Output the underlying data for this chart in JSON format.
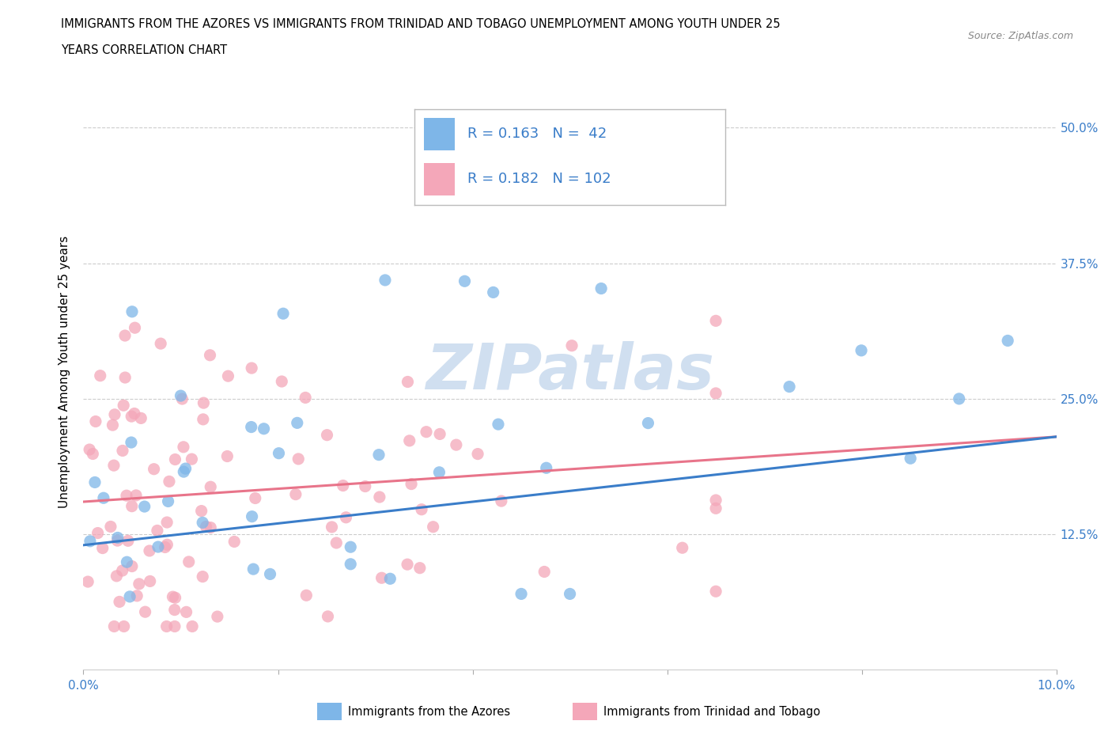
{
  "title_line1": "IMMIGRANTS FROM THE AZORES VS IMMIGRANTS FROM TRINIDAD AND TOBAGO UNEMPLOYMENT AMONG YOUTH UNDER 25",
  "title_line2": "YEARS CORRELATION CHART",
  "source": "Source: ZipAtlas.com",
  "ylabel": "Unemployment Among Youth under 25 years",
  "xlim": [
    0.0,
    0.1
  ],
  "ylim": [
    0.0,
    0.55
  ],
  "xtick_pos": [
    0.0,
    0.02,
    0.04,
    0.06,
    0.08,
    0.1
  ],
  "xticklabels": [
    "0.0%",
    "",
    "",
    "",
    "",
    "10.0%"
  ],
  "ytick_pos": [
    0.125,
    0.25,
    0.375,
    0.5
  ],
  "yticklabels": [
    "12.5%",
    "25.0%",
    "37.5%",
    "50.0%"
  ],
  "azores_color": "#7EB6E8",
  "trinidad_color": "#F4A7B9",
  "azores_line_color": "#3A7DC9",
  "trinidad_line_color": "#E8748A",
  "R_azores": 0.163,
  "N_azores": 42,
  "R_trinidad": 0.182,
  "N_trinidad": 102,
  "legend_color": "#3A7DC9",
  "background_color": "#ffffff",
  "grid_color": "#cccccc",
  "watermark_color": "#d0dff0",
  "azores_seed": 101,
  "trinidad_seed": 202
}
